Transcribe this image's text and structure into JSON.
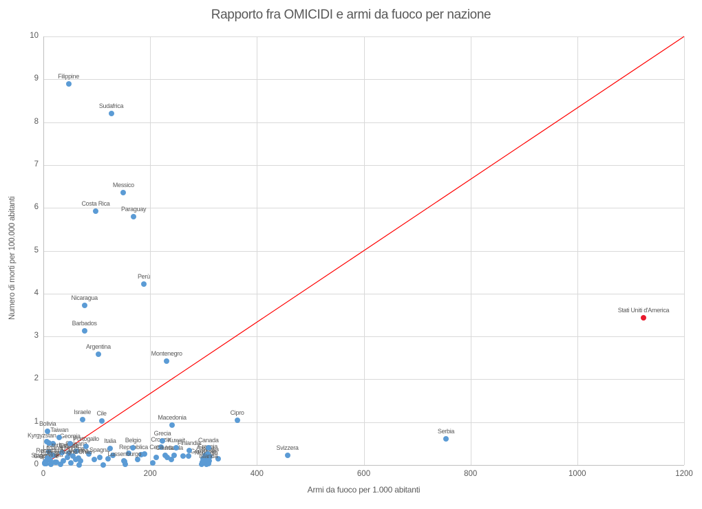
{
  "chart_data": {
    "type": "scatter",
    "title": "Rapporto fra OMICIDI e armi da fuoco per nazione",
    "xlabel": "Armi da fuoco per 1.000 abitanti",
    "ylabel": "Numero di morti per 100.000 abitanti",
    "xlim": [
      0,
      1200
    ],
    "ylim": [
      0,
      10
    ],
    "x_ticks": [
      0,
      200,
      400,
      600,
      800,
      1000,
      1200
    ],
    "y_ticks": [
      0,
      1,
      2,
      3,
      4,
      5,
      6,
      7,
      8,
      9,
      10
    ],
    "grid": true,
    "legend": null,
    "reference_line": {
      "from": [
        0,
        0
      ],
      "to": [
        1200,
        10
      ],
      "color": "#ff0000"
    },
    "colors": {
      "point": "#5b9bd5",
      "highlight": "#e8192c",
      "line": "#ff0000",
      "grid": "#d9d9d9",
      "axis": "#bfbfbf",
      "text": "#595959"
    },
    "labeled_points": [
      {
        "label": "Singapore",
        "x": 2,
        "y": 0.05
      },
      {
        "label": "Giappone",
        "x": 5,
        "y": 0.03
      },
      {
        "label": "Romania",
        "x": 8,
        "y": 0.16
      },
      {
        "label": "Polonia",
        "x": 13,
        "y": 0.11
      },
      {
        "label": "Lituania",
        "x": 18,
        "y": 0.22
      },
      {
        "label": "India",
        "x": 25,
        "y": 0.06
      },
      {
        "label": "Azerbaigian",
        "x": 35,
        "y": 0.29
      },
      {
        "label": "Estonia",
        "x": 48,
        "y": 0.28
      },
      {
        "label": "Ungheria",
        "x": 55,
        "y": 0.21
      },
      {
        "label": "Bulgaria",
        "x": 62,
        "y": 0.32
      },
      {
        "label": "Ucraina",
        "x": 66,
        "y": 0.16
      },
      {
        "label": "Spagna",
        "x": 105,
        "y": 0.17
      },
      {
        "label": "Olanda",
        "x": 228,
        "y": 0.22
      },
      {
        "label": "Irlanda",
        "x": 245,
        "y": 0.22
      },
      {
        "label": "Austria",
        "x": 303,
        "y": 0.22
      },
      {
        "label": "Norvegia",
        "x": 305,
        "y": 0.11
      },
      {
        "label": "Svezia",
        "x": 312,
        "y": 0.19
      },
      {
        "label": "Germania",
        "x": 299,
        "y": 0.15
      },
      {
        "label": "Francia",
        "x": 308,
        "y": 0.26
      },
      {
        "label": "Islanda",
        "x": 309,
        "y": 0.04
      },
      {
        "label": "Canada",
        "x": 309,
        "y": 0.41
      },
      {
        "label": "Finlandia",
        "x": 273,
        "y": 0.33
      },
      {
        "label": "Kuwait",
        "x": 249,
        "y": 0.4
      },
      {
        "label": "Croazia",
        "x": 220,
        "y": 0.42
      },
      {
        "label": "Grecia",
        "x": 223,
        "y": 0.57
      },
      {
        "label": "Repubblica Ceca",
        "x": 183,
        "y": 0.24
      },
      {
        "label": "Regno Unito",
        "x": 61,
        "y": 0.13
      },
      {
        "label": "Lussenburgo",
        "x": 152,
        "y": 0.08
      },
      {
        "label": "Belgio",
        "x": 168,
        "y": 0.4
      },
      {
        "label": "Italia",
        "x": 125,
        "y": 0.39
      },
      {
        "label": "Portogallo",
        "x": 80,
        "y": 0.43
      },
      {
        "label": "Georgia",
        "x": 50,
        "y": 0.5
      },
      {
        "label": "Kyrgyzstan",
        "x": 10,
        "y": 0.52,
        "dx": -10
      },
      {
        "label": "Taiwan",
        "x": 30,
        "y": 0.64
      },
      {
        "label": "Bolivia",
        "x": 8,
        "y": 0.78
      },
      {
        "label": "Israele",
        "x": 73,
        "y": 1.06
      },
      {
        "label": "Cile",
        "x": 109,
        "y": 1.03
      },
      {
        "label": "Macedonia",
        "x": 241,
        "y": 0.93
      },
      {
        "label": "Cipro",
        "x": 363,
        "y": 1.04
      },
      {
        "label": "Svizzera",
        "x": 457,
        "y": 0.23
      },
      {
        "label": "Serbia",
        "x": 754,
        "y": 0.61
      },
      {
        "label": "Montenegro",
        "x": 231,
        "y": 2.42
      },
      {
        "label": "Argentina",
        "x": 103,
        "y": 2.58
      },
      {
        "label": "Barbados",
        "x": 77,
        "y": 3.13
      },
      {
        "label": "Nicaragua",
        "x": 77,
        "y": 3.72
      },
      {
        "label": "Perù",
        "x": 188,
        "y": 4.22
      },
      {
        "label": "Paraguay",
        "x": 169,
        "y": 5.79
      },
      {
        "label": "Costa Rica",
        "x": 98,
        "y": 5.92
      },
      {
        "label": "Messico",
        "x": 150,
        "y": 6.35
      },
      {
        "label": "Sudafrica",
        "x": 127,
        "y": 8.2
      },
      {
        "label": "Filippine",
        "x": 47,
        "y": 8.9
      },
      {
        "label": "Stati Uniti d'America",
        "x": 1124,
        "y": 3.43,
        "color": "#e8192c"
      }
    ],
    "unlabeled_points": [
      [
        37,
        0.1
      ],
      [
        52,
        0.05
      ],
      [
        70,
        0.1
      ],
      [
        95,
        0.13
      ],
      [
        121,
        0.14
      ],
      [
        151,
        0.1
      ],
      [
        177,
        0.13
      ],
      [
        211,
        0.18
      ],
      [
        232,
        0.18
      ],
      [
        262,
        0.21
      ],
      [
        272,
        0.21
      ],
      [
        296,
        0.02
      ],
      [
        327,
        0.14
      ],
      [
        153,
        0.01
      ],
      [
        32,
        0.01
      ],
      [
        112,
        0.0
      ],
      [
        67,
        0.0
      ],
      [
        2,
        0.04
      ],
      [
        4,
        0.08
      ],
      [
        10,
        0.3
      ],
      [
        18,
        0.5
      ],
      [
        6,
        0.55
      ],
      [
        298,
        0.06
      ],
      [
        305,
        0.02
      ],
      [
        310,
        0.09
      ],
      [
        300,
        0.13
      ],
      [
        14,
        0.02
      ],
      [
        22,
        0.07
      ],
      [
        45,
        0.18
      ],
      [
        85,
        0.25
      ],
      [
        130,
        0.22
      ],
      [
        160,
        0.28
      ],
      [
        190,
        0.25
      ],
      [
        240,
        0.13
      ],
      [
        205,
        0.05
      ]
    ]
  }
}
